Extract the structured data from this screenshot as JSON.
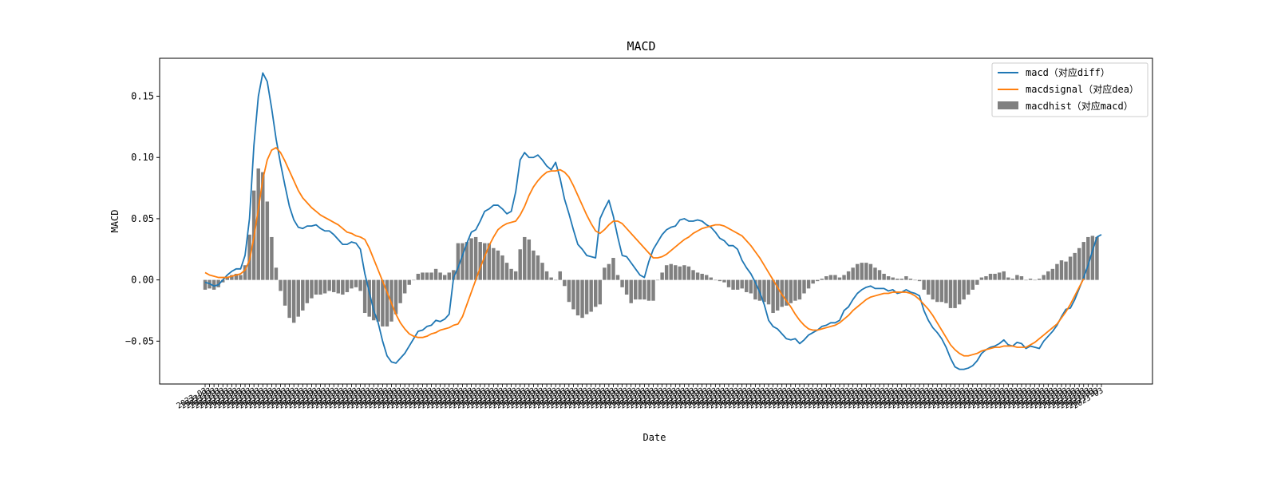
{
  "chart_data": {
    "type": "line",
    "title": "MACD",
    "xlabel": "Date",
    "ylabel": "MACD",
    "ylim": [
      -0.085,
      0.181
    ],
    "yticks": [
      -0.05,
      0.0,
      0.05,
      0.1,
      0.15
    ],
    "ytick_labels": [
      "−0.05",
      "0.00",
      "0.05",
      "0.10",
      "0.15"
    ],
    "legend_position": "top-right",
    "grid": false,
    "date_tick_label": "2023-03",
    "series": [
      {
        "name": "macd（对应diff）",
        "type": "line",
        "color": "#1f77b4",
        "values": [
          -0.002,
          -0.003,
          -0.005,
          -0.004,
          0.0,
          0.004,
          0.007,
          0.009,
          0.009,
          0.02,
          0.05,
          0.11,
          0.15,
          0.169,
          0.162,
          0.14,
          0.115,
          0.095,
          0.077,
          0.06,
          0.049,
          0.043,
          0.042,
          0.044,
          0.044,
          0.045,
          0.042,
          0.04,
          0.04,
          0.037,
          0.033,
          0.029,
          0.029,
          0.031,
          0.03,
          0.025,
          0.005,
          -0.01,
          -0.025,
          -0.035,
          -0.05,
          -0.062,
          -0.067,
          -0.068,
          -0.064,
          -0.06,
          -0.054,
          -0.048,
          -0.042,
          -0.041,
          -0.038,
          -0.037,
          -0.033,
          -0.034,
          -0.032,
          -0.028,
          0.002,
          0.01,
          0.02,
          0.03,
          0.039,
          0.041,
          0.048,
          0.056,
          0.058,
          0.061,
          0.061,
          0.058,
          0.054,
          0.056,
          0.072,
          0.098,
          0.104,
          0.1,
          0.1,
          0.102,
          0.098,
          0.093,
          0.09,
          0.096,
          0.083,
          0.066,
          0.054,
          0.041,
          0.029,
          0.025,
          0.02,
          0.019,
          0.018,
          0.05,
          0.058,
          0.065,
          0.052,
          0.035,
          0.02,
          0.019,
          0.014,
          0.009,
          0.004,
          0.002,
          0.015,
          0.025,
          0.031,
          0.037,
          0.041,
          0.043,
          0.044,
          0.049,
          0.05,
          0.048,
          0.048,
          0.049,
          0.048,
          0.045,
          0.043,
          0.039,
          0.034,
          0.032,
          0.028,
          0.028,
          0.025,
          0.016,
          0.01,
          0.005,
          -0.002,
          -0.01,
          -0.02,
          -0.033,
          -0.038,
          -0.04,
          -0.044,
          -0.048,
          -0.049,
          -0.048,
          -0.052,
          -0.049,
          -0.045,
          -0.043,
          -0.041,
          -0.038,
          -0.037,
          -0.035,
          -0.035,
          -0.033,
          -0.025,
          -0.022,
          -0.016,
          -0.011,
          -0.008,
          -0.006,
          -0.005,
          -0.007,
          -0.007,
          -0.007,
          -0.009,
          -0.008,
          -0.011,
          -0.01,
          -0.008,
          -0.01,
          -0.011,
          -0.013,
          -0.025,
          -0.033,
          -0.039,
          -0.043,
          -0.048,
          -0.055,
          -0.064,
          -0.071,
          -0.073,
          -0.073,
          -0.072,
          -0.07,
          -0.066,
          -0.06,
          -0.057,
          -0.055,
          -0.054,
          -0.052,
          -0.049,
          -0.053,
          -0.054,
          -0.051,
          -0.052,
          -0.056,
          -0.054,
          -0.055,
          -0.056,
          -0.05,
          -0.046,
          -0.042,
          -0.037,
          -0.03,
          -0.024,
          -0.023,
          -0.016,
          -0.007,
          0.002,
          0.012,
          0.024,
          0.035,
          0.037
        ]
      },
      {
        "name": "macdsignal（对应dea）",
        "type": "line",
        "color": "#ff7f0e",
        "values": [
          0.006,
          0.004,
          0.003,
          0.002,
          0.002,
          0.002,
          0.003,
          0.004,
          0.005,
          0.008,
          0.016,
          0.035,
          0.058,
          0.082,
          0.098,
          0.106,
          0.108,
          0.104,
          0.097,
          0.089,
          0.081,
          0.073,
          0.067,
          0.063,
          0.059,
          0.056,
          0.053,
          0.051,
          0.049,
          0.047,
          0.045,
          0.042,
          0.039,
          0.038,
          0.036,
          0.035,
          0.033,
          0.026,
          0.017,
          0.008,
          -0.001,
          -0.01,
          -0.019,
          -0.028,
          -0.035,
          -0.04,
          -0.044,
          -0.046,
          -0.047,
          -0.047,
          -0.046,
          -0.044,
          -0.043,
          -0.041,
          -0.04,
          -0.039,
          -0.037,
          -0.036,
          -0.03,
          -0.02,
          -0.01,
          0.0,
          0.01,
          0.019,
          0.028,
          0.035,
          0.041,
          0.044,
          0.046,
          0.047,
          0.048,
          0.053,
          0.06,
          0.069,
          0.076,
          0.081,
          0.085,
          0.088,
          0.089,
          0.089,
          0.09,
          0.088,
          0.084,
          0.077,
          0.069,
          0.061,
          0.053,
          0.046,
          0.04,
          0.038,
          0.041,
          0.045,
          0.048,
          0.048,
          0.046,
          0.042,
          0.038,
          0.034,
          0.03,
          0.026,
          0.022,
          0.018,
          0.018,
          0.019,
          0.021,
          0.024,
          0.027,
          0.03,
          0.033,
          0.035,
          0.038,
          0.04,
          0.042,
          0.043,
          0.044,
          0.045,
          0.045,
          0.044,
          0.042,
          0.04,
          0.038,
          0.036,
          0.032,
          0.028,
          0.023,
          0.018,
          0.012,
          0.006,
          0.0,
          -0.006,
          -0.012,
          -0.017,
          -0.022,
          -0.028,
          -0.033,
          -0.037,
          -0.04,
          -0.041,
          -0.041,
          -0.04,
          -0.039,
          -0.038,
          -0.037,
          -0.035,
          -0.032,
          -0.029,
          -0.025,
          -0.022,
          -0.019,
          -0.016,
          -0.014,
          -0.013,
          -0.012,
          -0.011,
          -0.011,
          -0.01,
          -0.01,
          -0.01,
          -0.01,
          -0.011,
          -0.013,
          -0.016,
          -0.02,
          -0.024,
          -0.029,
          -0.035,
          -0.041,
          -0.047,
          -0.053,
          -0.057,
          -0.06,
          -0.062,
          -0.062,
          -0.061,
          -0.06,
          -0.058,
          -0.057,
          -0.056,
          -0.055,
          -0.055,
          -0.054,
          -0.054,
          -0.054,
          -0.055,
          -0.055,
          -0.055,
          -0.053,
          -0.051,
          -0.048,
          -0.045,
          -0.042,
          -0.039,
          -0.036,
          -0.031,
          -0.026,
          -0.02,
          -0.013,
          -0.006,
          0.001
        ]
      },
      {
        "name": "macdhist（对应macd）",
        "type": "bar",
        "color": "#808080",
        "values": [
          -0.008,
          -0.007,
          -0.008,
          -0.006,
          -0.002,
          0.002,
          0.004,
          0.005,
          0.004,
          0.012,
          0.037,
          0.073,
          0.091,
          0.088,
          0.064,
          0.035,
          0.01,
          -0.009,
          -0.021,
          -0.031,
          -0.035,
          -0.03,
          -0.025,
          -0.019,
          -0.015,
          -0.012,
          -0.012,
          -0.011,
          -0.009,
          -0.01,
          -0.011,
          -0.012,
          -0.01,
          -0.007,
          -0.006,
          -0.009,
          -0.027,
          -0.03,
          -0.033,
          -0.034,
          -0.038,
          -0.038,
          -0.034,
          -0.028,
          -0.019,
          -0.011,
          -0.004,
          0.0,
          0.005,
          0.006,
          0.006,
          0.006,
          0.009,
          0.006,
          0.004,
          0.006,
          0.008,
          0.03,
          0.03,
          0.031,
          0.034,
          0.035,
          0.031,
          0.03,
          0.03,
          0.026,
          0.024,
          0.02,
          0.014,
          0.009,
          0.007,
          0.025,
          0.035,
          0.033,
          0.024,
          0.02,
          0.014,
          0.007,
          0.002,
          0.0,
          0.007,
          -0.005,
          -0.018,
          -0.024,
          -0.029,
          -0.031,
          -0.028,
          -0.026,
          -0.022,
          -0.02,
          0.01,
          0.013,
          0.018,
          0.004,
          -0.006,
          -0.012,
          -0.019,
          -0.016,
          -0.016,
          -0.016,
          -0.017,
          -0.017,
          0.0,
          0.006,
          0.012,
          0.013,
          0.012,
          0.011,
          0.012,
          0.011,
          0.008,
          0.006,
          0.005,
          0.004,
          0.002,
          0.0,
          -0.001,
          -0.002,
          -0.006,
          -0.008,
          -0.008,
          -0.007,
          -0.01,
          -0.011,
          -0.016,
          -0.017,
          -0.018,
          -0.02,
          -0.027,
          -0.025,
          -0.022,
          -0.021,
          -0.019,
          -0.017,
          -0.016,
          -0.011,
          -0.007,
          -0.003,
          -0.001,
          0.001,
          0.003,
          0.004,
          0.004,
          0.002,
          0.004,
          0.007,
          0.01,
          0.013,
          0.014,
          0.014,
          0.013,
          0.01,
          0.008,
          0.005,
          0.003,
          0.002,
          0.001,
          0.001,
          0.003,
          0.001,
          0.0,
          -0.001,
          -0.008,
          -0.012,
          -0.016,
          -0.018,
          -0.018,
          -0.019,
          -0.023,
          -0.023,
          -0.02,
          -0.016,
          -0.012,
          -0.008,
          -0.004,
          0.002,
          0.003,
          0.005,
          0.005,
          0.006,
          0.007,
          0.002,
          0.001,
          0.004,
          0.003,
          0.0,
          0.001,
          0.0,
          0.001,
          0.004,
          0.007,
          0.009,
          0.013,
          0.016,
          0.015,
          0.019,
          0.022,
          0.026,
          0.031,
          0.035,
          0.036,
          0.035
        ]
      }
    ]
  }
}
